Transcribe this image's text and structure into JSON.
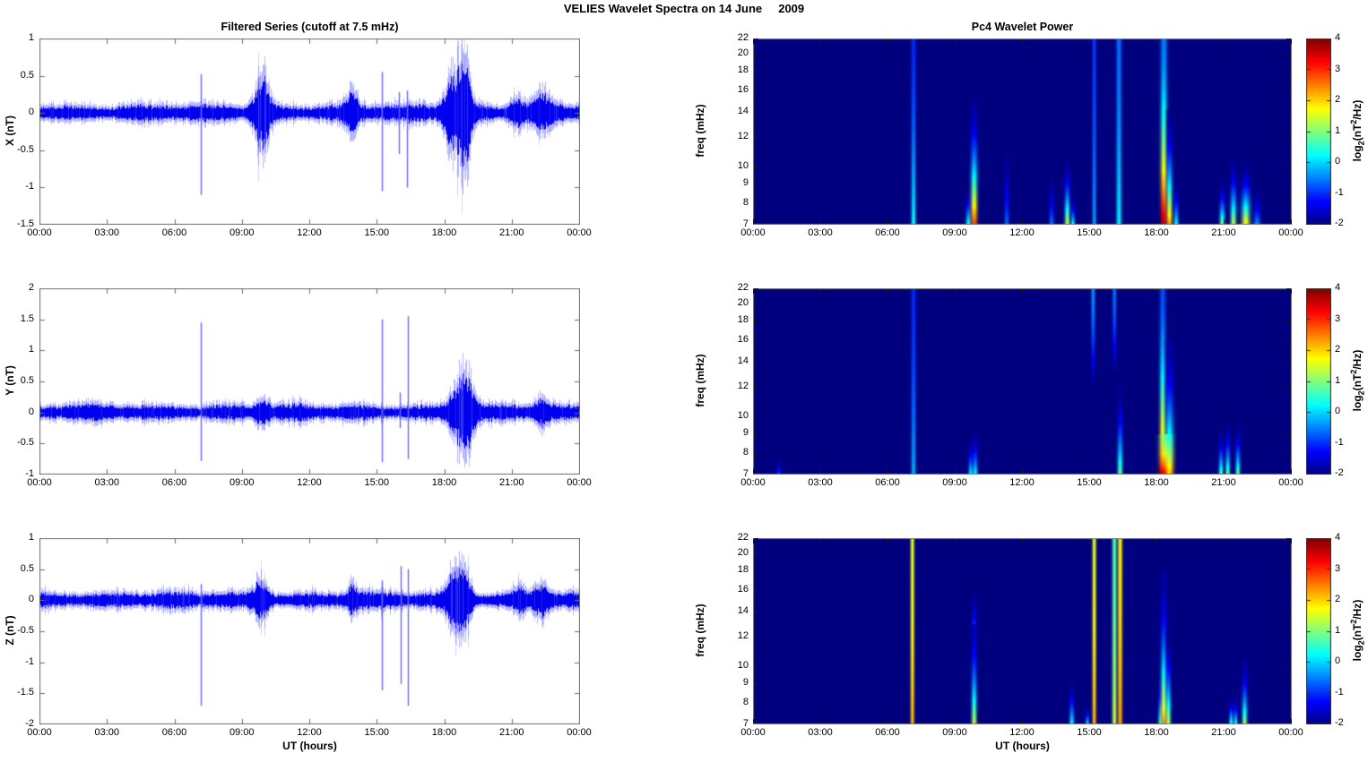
{
  "chart_data": {
    "figure_title": "VELIES Wavelet Spectra on 14 June     2009",
    "x_ticks": [
      "00:00",
      "03:00",
      "06:00",
      "09:00",
      "12:00",
      "15:00",
      "18:00",
      "21:00",
      "00:00"
    ],
    "x_range_hours": [
      0,
      24
    ],
    "colors": {
      "series_blue": "#0000ee",
      "axes_frame": "#6e6e6e",
      "spectrogram_background": "#000080",
      "text": "#000000"
    },
    "time_series": {
      "type": "line",
      "title": "Filtered Series (cutoff at 7.5 mHz)",
      "xlabel": "UT (hours)",
      "panels": [
        {
          "id": "ts-x",
          "ylabel": "X (nT)",
          "ylim": [
            -1.5,
            1
          ],
          "seed": 11,
          "y_tick_values": [
            1,
            0.5,
            0,
            -0.5,
            -1,
            -1.5
          ],
          "y_tick_labels": [
            "1",
            "0.5",
            "0",
            "-0.5",
            "-1",
            "-1.5"
          ],
          "noise_amp": 0.075,
          "spikes": [
            {
              "t": 7.15,
              "up": 0.52,
              "down": -1.1
            },
            {
              "t": 15.2,
              "up": 0.55,
              "down": -1.05
            },
            {
              "t": 15.95,
              "up": 0.28,
              "down": -0.55
            },
            {
              "t": 16.3,
              "up": 0.3,
              "down": -1.0
            }
          ],
          "bursts": [
            {
              "t": 9.85,
              "w": 0.25,
              "amp": 0.42
            },
            {
              "t": 13.85,
              "w": 0.2,
              "amp": 0.2
            },
            {
              "t": 18.5,
              "w": 0.35,
              "amp": 0.5
            },
            {
              "t": 18.95,
              "w": 0.2,
              "amp": 0.36
            },
            {
              "t": 21.2,
              "w": 0.25,
              "amp": 0.14
            },
            {
              "t": 22.3,
              "w": 0.3,
              "amp": 0.2
            }
          ]
        },
        {
          "id": "ts-y",
          "ylabel": "Y (nT)",
          "ylim": [
            -1,
            2
          ],
          "seed": 22,
          "y_tick_values": [
            2,
            1.5,
            1,
            0.5,
            0,
            -0.5,
            -1
          ],
          "y_tick_labels": [
            "2",
            "1.5",
            "1",
            "0.5",
            "0",
            "-0.5",
            "-1"
          ],
          "noise_amp": 0.085,
          "spikes": [
            {
              "t": 7.15,
              "up": 1.45,
              "down": -0.78
            },
            {
              "t": 15.2,
              "up": 1.5,
              "down": -0.8
            },
            {
              "t": 16.0,
              "up": 0.32,
              "down": -0.25
            },
            {
              "t": 16.35,
              "up": 1.55,
              "down": -0.75
            }
          ],
          "bursts": [
            {
              "t": 9.85,
              "w": 0.2,
              "amp": 0.12
            },
            {
              "t": 18.6,
              "w": 0.3,
              "amp": 0.4
            },
            {
              "t": 19.0,
              "w": 0.25,
              "amp": 0.34
            },
            {
              "t": 22.3,
              "w": 0.3,
              "amp": 0.12
            }
          ]
        },
        {
          "id": "ts-z",
          "ylabel": "Z (nT)",
          "ylim": [
            -2,
            1
          ],
          "seed": 33,
          "y_tick_values": [
            1,
            0.5,
            0,
            -0.5,
            -1,
            -1.5,
            -2
          ],
          "y_tick_labels": [
            "1",
            "0.5",
            "0",
            "-0.5",
            "-1",
            "-1.5",
            "-2"
          ],
          "noise_amp": 0.085,
          "spikes": [
            {
              "t": 7.15,
              "up": 0.26,
              "down": -1.7
            },
            {
              "t": 15.2,
              "up": 0.32,
              "down": -1.45
            },
            {
              "t": 16.05,
              "up": 0.55,
              "down": -1.35
            },
            {
              "t": 16.35,
              "up": 0.5,
              "down": -1.7
            }
          ],
          "bursts": [
            {
              "t": 9.85,
              "w": 0.25,
              "amp": 0.26
            },
            {
              "t": 13.85,
              "w": 0.2,
              "amp": 0.15
            },
            {
              "t": 18.5,
              "w": 0.3,
              "amp": 0.4
            },
            {
              "t": 18.95,
              "w": 0.2,
              "amp": 0.22
            },
            {
              "t": 21.3,
              "w": 0.2,
              "amp": 0.13
            },
            {
              "t": 22.3,
              "w": 0.3,
              "amp": 0.18
            }
          ]
        }
      ]
    },
    "spectrograms": {
      "type": "heatmap",
      "title": "Pc4 Wavelet Power",
      "xlabel": "UT (hours)",
      "ylabel": "freq (mHz)",
      "freq_range_mHz": [
        7,
        22
      ],
      "freq_scale": "log",
      "freq_tick_values": [
        22,
        20,
        18,
        16,
        14,
        12,
        10,
        9,
        8,
        7
      ],
      "freq_tick_labels": [
        "22",
        "20",
        "18",
        "16",
        "14",
        "12",
        "10",
        "9",
        "8",
        "7"
      ],
      "power_range_log2": [
        -2,
        4
      ],
      "panels": [
        {
          "id": "wavelet-x",
          "component": "X",
          "streaks": [
            {
              "t": 7.15,
              "f_lo": 7,
              "f_hi": 22,
              "i_lo": 0.3,
              "i_hi": -1.0,
              "w": 0.07
            },
            {
              "t": 9.6,
              "f_lo": 7,
              "f_hi": 9,
              "i_lo": 0.6,
              "i_hi": -2,
              "w": 0.08
            },
            {
              "t": 9.85,
              "f_lo": 7,
              "f_hi": 16.5,
              "i_lo": 2.9,
              "i_hi": -2,
              "w": 0.1
            },
            {
              "t": 11.3,
              "f_lo": 7,
              "f_hi": 12,
              "i_lo": -0.6,
              "i_hi": -2,
              "w": 0.07
            },
            {
              "t": 13.3,
              "f_lo": 7,
              "f_hi": 10,
              "i_lo": -0.5,
              "i_hi": -2,
              "w": 0.07
            },
            {
              "t": 14.0,
              "f_lo": 7,
              "f_hi": 11,
              "i_lo": 1.5,
              "i_hi": -2,
              "w": 0.08
            },
            {
              "t": 14.25,
              "f_lo": 7,
              "f_hi": 8.5,
              "i_lo": 0.5,
              "i_hi": -2,
              "w": 0.06
            },
            {
              "t": 15.2,
              "f_lo": 7,
              "f_hi": 22,
              "i_lo": -0.3,
              "i_hi": -0.9,
              "w": 0.06
            },
            {
              "t": 16.3,
              "f_lo": 7,
              "f_hi": 22,
              "i_lo": 0.2,
              "i_hi": -0.6,
              "w": 0.08
            },
            {
              "t": 18.3,
              "f_lo": 7,
              "f_hi": 22,
              "i_lo": 3.7,
              "i_hi": -0.5,
              "w": 0.1
            },
            {
              "t": 18.55,
              "f_lo": 7,
              "f_hi": 15,
              "i_lo": 2.4,
              "i_hi": -2,
              "w": 0.09
            },
            {
              "t": 18.85,
              "f_lo": 7,
              "f_hi": 9.5,
              "i_lo": 0.4,
              "i_hi": -2,
              "w": 0.07
            },
            {
              "t": 20.9,
              "f_lo": 7,
              "f_hi": 9.5,
              "i_lo": 1.1,
              "i_hi": -2,
              "w": 0.08
            },
            {
              "t": 21.4,
              "f_lo": 7,
              "f_hi": 11,
              "i_lo": 1.5,
              "i_hi": -2,
              "w": 0.09
            },
            {
              "t": 21.95,
              "f_lo": 7,
              "f_hi": 10.5,
              "i_lo": 2.0,
              "i_hi": -2,
              "w": 0.13
            },
            {
              "t": 22.45,
              "f_lo": 7,
              "f_hi": 9,
              "i_lo": -0.3,
              "i_hi": -2,
              "w": 0.1
            }
          ]
        },
        {
          "id": "wavelet-y",
          "component": "Y",
          "streaks": [
            {
              "t": 1.15,
              "f_lo": 7,
              "f_hi": 8,
              "i_lo": -0.8,
              "i_hi": -2,
              "w": 0.06
            },
            {
              "t": 7.15,
              "f_lo": 7,
              "f_hi": 22,
              "i_lo": -0.2,
              "i_hi": -1.0,
              "w": 0.07
            },
            {
              "t": 9.7,
              "f_lo": 7,
              "f_hi": 9,
              "i_lo": 0.3,
              "i_hi": -2,
              "w": 0.07
            },
            {
              "t": 9.9,
              "f_lo": 7,
              "f_hi": 9.5,
              "i_lo": 0.4,
              "i_hi": -2,
              "w": 0.07
            },
            {
              "t": 15.15,
              "f_lo": 12,
              "f_hi": 22,
              "i_lo": -2,
              "i_hi": -0.4,
              "w": 0.06
            },
            {
              "t": 16.1,
              "f_lo": 13,
              "f_hi": 22,
              "i_lo": -2,
              "i_hi": -0.6,
              "w": 0.06
            },
            {
              "t": 16.35,
              "f_lo": 7,
              "f_hi": 13,
              "i_lo": 0.9,
              "i_hi": -2,
              "w": 0.08
            },
            {
              "t": 18.25,
              "f_lo": 7,
              "f_hi": 22,
              "i_lo": 3.3,
              "i_hi": -0.8,
              "w": 0.09
            },
            {
              "t": 18.4,
              "f_lo": 7,
              "f_hi": 9,
              "i_lo": 3.8,
              "i_hi": 1.0,
              "w": 0.18
            },
            {
              "t": 18.55,
              "f_lo": 7,
              "f_hi": 16,
              "i_lo": 2.2,
              "i_hi": -1.8,
              "w": 0.12
            },
            {
              "t": 20.85,
              "f_lo": 7,
              "f_hi": 9.5,
              "i_lo": 0.8,
              "i_hi": -2,
              "w": 0.07
            },
            {
              "t": 21.15,
              "f_lo": 7,
              "f_hi": 10,
              "i_lo": 1.0,
              "i_hi": -2,
              "w": 0.07
            },
            {
              "t": 21.6,
              "f_lo": 7,
              "f_hi": 10,
              "i_lo": 0.9,
              "i_hi": -2,
              "w": 0.07
            }
          ]
        },
        {
          "id": "wavelet-z",
          "component": "Z",
          "streaks": [
            {
              "t": 7.1,
              "f_lo": 7,
              "f_hi": 22,
              "i_lo": 2.2,
              "i_hi": 1.6,
              "w": 0.06
            },
            {
              "t": 9.85,
              "f_lo": 7,
              "f_hi": 13,
              "i_lo": 1.5,
              "i_hi": -1.6,
              "w": 0.08
            },
            {
              "t": 9.85,
              "f_lo": 13,
              "f_hi": 16.5,
              "i_lo": -1.0,
              "i_hi": -2,
              "w": 0.07
            },
            {
              "t": 14.2,
              "f_lo": 7,
              "f_hi": 9.5,
              "i_lo": 0.4,
              "i_hi": -2,
              "w": 0.07
            },
            {
              "t": 14.9,
              "f_lo": 7,
              "f_hi": 8,
              "i_lo": 0.3,
              "i_hi": -2,
              "w": 0.06
            },
            {
              "t": 15.2,
              "f_lo": 7,
              "f_hi": 22,
              "i_lo": 2.2,
              "i_hi": 1.6,
              "w": 0.06
            },
            {
              "t": 16.1,
              "f_lo": 7,
              "f_hi": 22,
              "i_lo": 1.4,
              "i_hi": 0.7,
              "w": 0.07
            },
            {
              "t": 16.35,
              "f_lo": 7,
              "f_hi": 22,
              "i_lo": 2.3,
              "i_hi": 1.8,
              "w": 0.07
            },
            {
              "t": 18.15,
              "f_lo": 7,
              "f_hi": 10,
              "i_lo": 0.5,
              "i_hi": -2,
              "w": 0.07
            },
            {
              "t": 18.3,
              "f_lo": 7,
              "f_hi": 18,
              "i_lo": 2.5,
              "i_hi": -1.8,
              "w": 0.09
            },
            {
              "t": 18.5,
              "f_lo": 7,
              "f_hi": 13,
              "i_lo": 1.4,
              "i_hi": -2,
              "w": 0.08
            },
            {
              "t": 21.3,
              "f_lo": 7,
              "f_hi": 8.5,
              "i_lo": 0.8,
              "i_hi": -2,
              "w": 0.06
            },
            {
              "t": 21.5,
              "f_lo": 7,
              "f_hi": 8.5,
              "i_lo": 0.6,
              "i_hi": -2,
              "w": 0.06
            },
            {
              "t": 21.9,
              "f_lo": 7,
              "f_hi": 10.5,
              "i_lo": 1.3,
              "i_hi": -1.8,
              "w": 0.08
            }
          ]
        }
      ],
      "colorbar": {
        "tick_values": [
          4,
          3,
          2,
          1,
          0,
          -1,
          -2
        ],
        "tick_labels": [
          "4",
          "3",
          "2",
          "1",
          "0",
          "-1",
          "-2"
        ],
        "label": "log2(nT2/Hz)",
        "label_parts": {
          "p1": "log",
          "sub": "2",
          "p2": "(nT",
          "sup": "2",
          "p3": "/Hz)"
        },
        "colormap": "jet"
      }
    }
  }
}
